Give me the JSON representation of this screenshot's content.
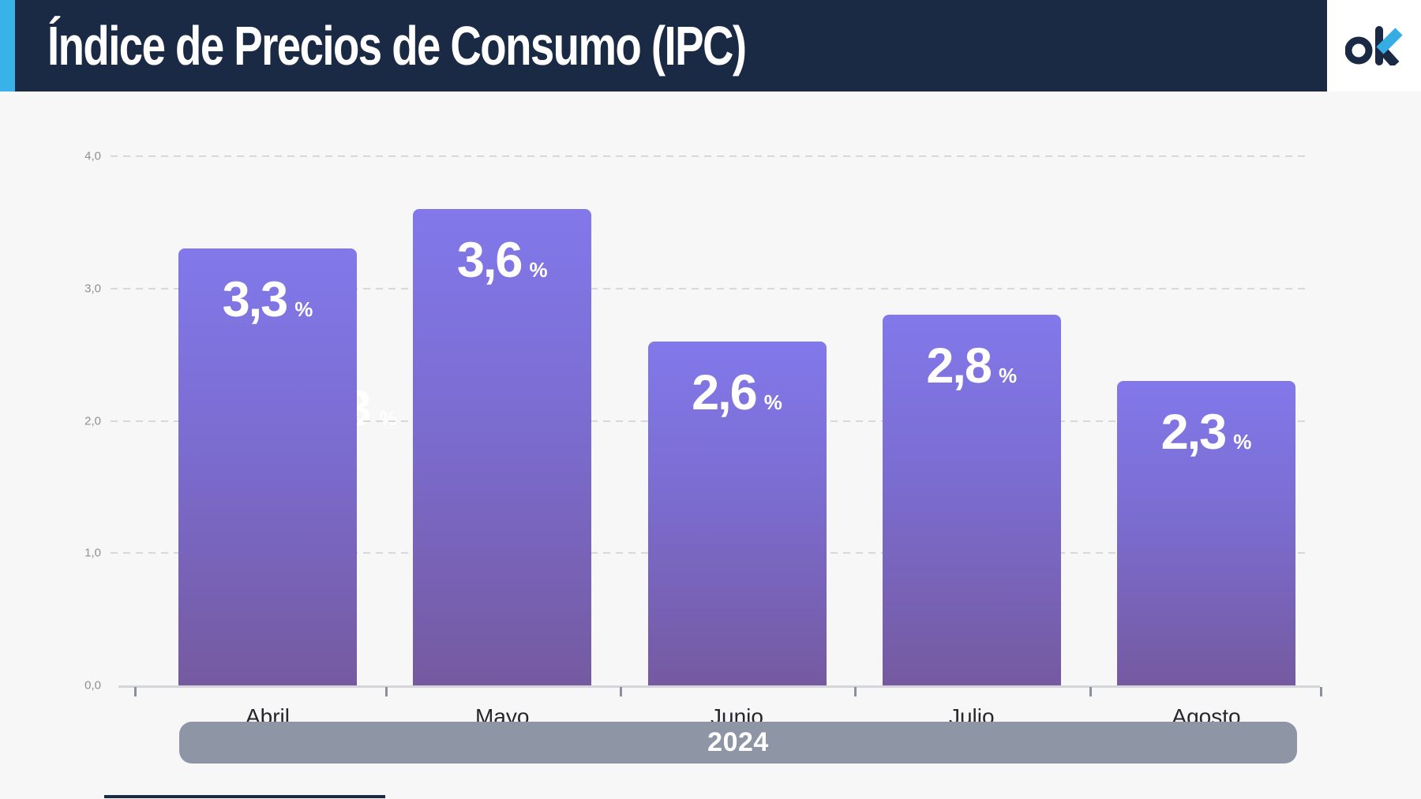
{
  "header": {
    "title": "Índice de Precios de Consumo (IPC)",
    "logo": {
      "o": "o",
      "k_name": "ok-logo"
    }
  },
  "chart_data": {
    "type": "bar",
    "title": "Índice de Precios de Consumo (IPC)",
    "categories": [
      "Abril",
      "Mayo",
      "Junio",
      "Julio",
      "Agosto"
    ],
    "values": [
      3.3,
      3.6,
      2.6,
      2.8,
      2.3
    ],
    "value_labels": [
      "3,3",
      "3,6",
      "2,6",
      "2,8",
      "2,3"
    ],
    "unit": "%",
    "xlabel": "",
    "ylabel": "",
    "ylim": [
      0,
      4
    ],
    "yticks": [
      {
        "value": 0,
        "label": "0,0"
      },
      {
        "value": 1,
        "label": "1,0"
      },
      {
        "value": 2,
        "label": "2,0"
      },
      {
        "value": 3,
        "label": "3,0"
      },
      {
        "value": 4,
        "label": "4,0"
      }
    ],
    "grid": "horizontal-dashed",
    "legend": "none",
    "period_label": "2024"
  },
  "ghost_label": {
    "number": "3",
    "unit": "%"
  },
  "colors": {
    "header_bg": "#1b2a44",
    "accent_blue": "#38b2e8",
    "page_bg": "#f7f7f8",
    "bar_top": "#8278ea",
    "bar_bottom": "#755aa0",
    "year_pill_bg": "#8e95a5",
    "grid_line": "#d8d8dc",
    "logo_navy": "#1b2a44",
    "logo_blue": "#36ace4"
  }
}
